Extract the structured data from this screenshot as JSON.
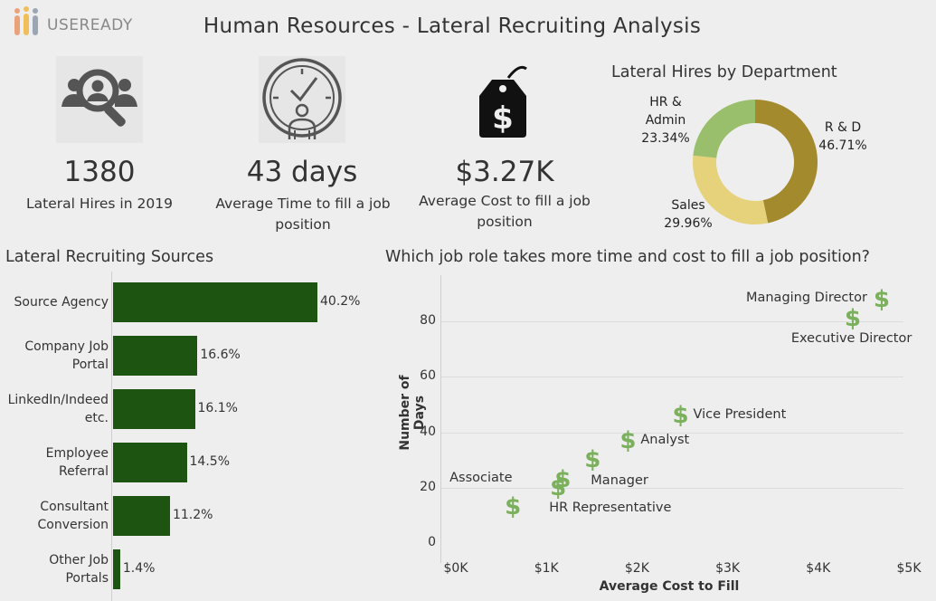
{
  "header": {
    "logo_text": "USEREADY",
    "title": "Human Resources - Lateral Recruiting Analysis"
  },
  "kpis": [
    {
      "value": "1380",
      "label": "Lateral Hires in 2019",
      "icon": "hr-search-icon"
    },
    {
      "value": "43 days",
      "label": "Average Time to fill a job position",
      "icon": "clock-person-icon"
    },
    {
      "value": "$3.27K",
      "label": "Average Cost to fill a job position",
      "icon": "price-tag-icon"
    }
  ],
  "colors": {
    "background": "#eeeeee",
    "bar": "#1e5412",
    "scatter_marker": "#7bb05d",
    "donut_rd": "#a38a2c",
    "donut_sales": "#e6d27a",
    "donut_hr": "#99bf6c"
  },
  "chart_data": [
    {
      "type": "pie",
      "title": "Lateral Hires by Department",
      "donut": true,
      "slices": [
        {
          "name": "R & D",
          "value": 46.71,
          "label": "46.71%"
        },
        {
          "name": "Sales",
          "value": 29.96,
          "label": "29.96%"
        },
        {
          "name": "HR & Admin",
          "value": 23.34,
          "label": "23.34%"
        }
      ]
    },
    {
      "type": "bar",
      "orientation": "horizontal",
      "title": "Lateral Recruiting Sources",
      "categories": [
        "Source Agency",
        "Company Job Portal",
        "LinkedIn/Indeed etc.",
        "Employee Referral",
        "Consultant Conversion",
        "Other Job Portals"
      ],
      "category_lines": [
        [
          "Source Agency"
        ],
        [
          "Company Job",
          "Portal"
        ],
        [
          "LinkedIn/Indeed",
          "etc."
        ],
        [
          "Employee",
          "Referral"
        ],
        [
          "Consultant",
          "Conversion"
        ],
        [
          "Other Job",
          "Portals"
        ]
      ],
      "values": [
        40.2,
        16.6,
        16.1,
        14.5,
        11.2,
        1.4
      ],
      "value_labels": [
        "40.2%",
        "16.6%",
        "16.1%",
        "14.5%",
        "11.2%",
        "1.4%"
      ],
      "xlim": [
        0,
        40.2
      ]
    },
    {
      "type": "scatter",
      "title": "Which job role takes more time and cost to fill a job position?",
      "xlabel": "Average Cost to Fill",
      "ylabel": "Number of Days",
      "xlim": [
        0,
        5000
      ],
      "ylim": [
        0,
        100
      ],
      "xticks": [
        0,
        1000,
        2000,
        3000,
        4000,
        5000
      ],
      "xtick_labels": [
        "$0K",
        "$1K",
        "$2K",
        "$3K",
        "$4K",
        "$5K"
      ],
      "yticks": [
        0,
        20,
        40,
        60,
        80
      ],
      "ytick_labels": [
        "0",
        "20",
        "40",
        "60",
        "80"
      ],
      "grid": true,
      "marker": "$",
      "points": [
        {
          "name": "Associate",
          "x": 630,
          "y": 13,
          "label_side": "above-left"
        },
        {
          "name": "HR Representative",
          "x": 1130,
          "y": 20,
          "label_side": "below-right"
        },
        {
          "name": "",
          "x": 1180,
          "y": 23,
          "label_side": "none"
        },
        {
          "name": "Manager",
          "x": 1510,
          "y": 30,
          "label_side": "below-right"
        },
        {
          "name": "Analyst",
          "x": 1900,
          "y": 37,
          "label_side": "right"
        },
        {
          "name": "Vice President",
          "x": 2480,
          "y": 46,
          "label_side": "right"
        },
        {
          "name": "Executive Director",
          "x": 4380,
          "y": 81,
          "label_side": "below-right"
        },
        {
          "name": "Managing Director",
          "x": 4700,
          "y": 88,
          "label_side": "left"
        }
      ]
    }
  ]
}
